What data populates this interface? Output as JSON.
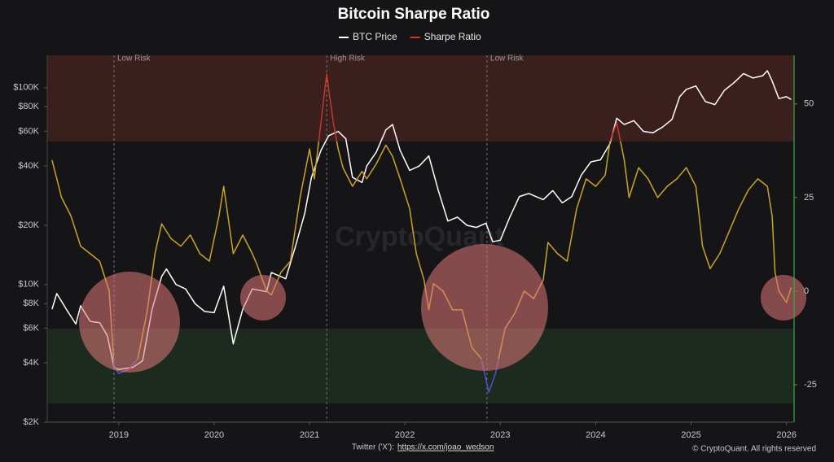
{
  "chart_data": {
    "type": "line",
    "title": "Bitcoin Sharpe Ratio",
    "watermark": "CryptoQuant",
    "source_label": "Twitter ('X'):",
    "source_link": "https://x.com/joao_wedson",
    "copyright": "© CryptoQuant. All rights reserved",
    "log_y": true,
    "grid": false,
    "legend": "top",
    "xlim": [
      2018.25,
      2026.08
    ],
    "xticks": [
      2019,
      2020,
      2021,
      2022,
      2023,
      2024,
      2025,
      2026
    ],
    "ylim": [
      2000,
      146000
    ],
    "yticks": [
      {
        "value": 2000,
        "label": "$2K"
      },
      {
        "value": 4000,
        "label": "$4K"
      },
      {
        "value": 6000,
        "label": "$6K"
      },
      {
        "value": 8000,
        "label": "$8K"
      },
      {
        "value": 10000,
        "label": "$10K"
      },
      {
        "value": 20000,
        "label": "$20K"
      },
      {
        "value": 40000,
        "label": "$40K"
      },
      {
        "value": 60000,
        "label": "$60K"
      },
      {
        "value": 80000,
        "label": "$80K"
      },
      {
        "value": 100000,
        "label": "$100K"
      }
    ],
    "y2lim": [
      -35,
      63
    ],
    "y2ticks": [
      -25,
      0,
      25,
      50
    ],
    "zones": [
      {
        "from": 40,
        "to": 63,
        "color": "#3a1f1c"
      },
      {
        "from": -30,
        "to": -10,
        "color": "#1c2a20"
      }
    ],
    "annotations": [
      {
        "x": 2018.95,
        "text": "Low Risk"
      },
      {
        "x": 2021.18,
        "text": "High Risk"
      },
      {
        "x": 2022.86,
        "text": "Low Risk"
      }
    ],
    "series": [
      {
        "name": "BTC Price",
        "color": "#ffffff",
        "x": [
          2018.3,
          2018.35,
          2018.45,
          2018.55,
          2018.6,
          2018.7,
          2018.8,
          2018.88,
          2018.95,
          2019.0,
          2019.15,
          2019.25,
          2019.35,
          2019.45,
          2019.5,
          2019.6,
          2019.7,
          2019.8,
          2019.9,
          2020.0,
          2020.1,
          2020.2,
          2020.3,
          2020.4,
          2020.55,
          2020.6,
          2020.75,
          2020.85,
          2020.95,
          2021.02,
          2021.12,
          2021.2,
          2021.3,
          2021.38,
          2021.45,
          2021.55,
          2021.6,
          2021.7,
          2021.8,
          2021.87,
          2021.95,
          2022.05,
          2022.15,
          2022.25,
          2022.35,
          2022.45,
          2022.55,
          2022.65,
          2022.75,
          2022.85,
          2022.92,
          2023.0,
          2023.1,
          2023.2,
          2023.3,
          2023.45,
          2023.55,
          2023.65,
          2023.75,
          2023.85,
          2023.95,
          2024.05,
          2024.15,
          2024.22,
          2024.3,
          2024.4,
          2024.5,
          2024.6,
          2024.7,
          2024.8,
          2024.88,
          2024.95,
          2025.05,
          2025.15,
          2025.25,
          2025.35,
          2025.45,
          2025.55,
          2025.65,
          2025.75,
          2025.8,
          2025.85,
          2025.92,
          2026.0,
          2026.05
        ],
        "values": [
          7500,
          9000,
          7500,
          6300,
          7800,
          6500,
          6400,
          5500,
          3800,
          3700,
          3800,
          4100,
          7500,
          11000,
          12000,
          10000,
          9500,
          8000,
          7300,
          7200,
          9800,
          5000,
          7500,
          9500,
          9200,
          11500,
          10700,
          15500,
          23000,
          35000,
          48000,
          57000,
          60000,
          55000,
          35000,
          33000,
          40000,
          47000,
          61000,
          65000,
          48000,
          38000,
          40000,
          45000,
          30000,
          21000,
          22000,
          20000,
          19500,
          20500,
          16500,
          16800,
          22000,
          28000,
          29000,
          27000,
          30000,
          26000,
          28000,
          36000,
          42000,
          43000,
          52000,
          70000,
          65000,
          68000,
          60000,
          59000,
          63000,
          69000,
          90000,
          98000,
          102000,
          85000,
          82000,
          97000,
          106000,
          118000,
          112000,
          115000,
          122000,
          108000,
          88000,
          90000,
          87000
        ]
      },
      {
        "name": "Sharpe Ratio",
        "color": "#d23a2a",
        "axis": "y2",
        "color_thresholds": [
          {
            "above": 40,
            "color": "#c0392b"
          },
          {
            "above": -18,
            "color": "#c9a227"
          },
          {
            "above": -35,
            "color": "#4a55c8"
          }
        ],
        "x": [
          2018.3,
          2018.4,
          2018.5,
          2018.6,
          2018.7,
          2018.8,
          2018.9,
          2018.95,
          2019.0,
          2019.1,
          2019.2,
          2019.3,
          2019.38,
          2019.45,
          2019.55,
          2019.65,
          2019.75,
          2019.85,
          2019.95,
          2020.05,
          2020.1,
          2020.2,
          2020.3,
          2020.4,
          2020.45,
          2020.55,
          2020.6,
          2020.7,
          2020.8,
          2020.9,
          2021.0,
          2021.05,
          2021.18,
          2021.25,
          2021.3,
          2021.35,
          2021.45,
          2021.55,
          2021.6,
          2021.7,
          2021.8,
          2021.87,
          2021.95,
          2022.05,
          2022.12,
          2022.2,
          2022.25,
          2022.3,
          2022.4,
          2022.5,
          2022.6,
          2022.7,
          2022.8,
          2022.88,
          2022.95,
          2023.05,
          2023.15,
          2023.25,
          2023.35,
          2023.45,
          2023.5,
          2023.6,
          2023.7,
          2023.8,
          2023.9,
          2024.0,
          2024.1,
          2024.15,
          2024.22,
          2024.3,
          2024.35,
          2024.45,
          2024.55,
          2024.65,
          2024.75,
          2024.85,
          2024.95,
          2025.05,
          2025.12,
          2025.2,
          2025.3,
          2025.4,
          2025.5,
          2025.6,
          2025.7,
          2025.8,
          2025.85,
          2025.88,
          2025.92,
          2026.0,
          2026.05
        ],
        "values": [
          35,
          25,
          20,
          12,
          10,
          8,
          0,
          -20,
          -22,
          -21,
          -18,
          -5,
          10,
          18,
          14,
          12,
          15,
          10,
          8,
          20,
          28,
          10,
          15,
          10,
          7,
          0,
          -1,
          5,
          8,
          25,
          38,
          30,
          58,
          45,
          38,
          33,
          28,
          32,
          30,
          34,
          39,
          36,
          30,
          22,
          10,
          3,
          -5,
          2,
          0,
          -5,
          -5,
          -15,
          -18,
          -27,
          -22,
          -10,
          -6,
          0,
          -2,
          3,
          13,
          10,
          8,
          22,
          30,
          28,
          31,
          40,
          45,
          35,
          25,
          33,
          30,
          25,
          28,
          30,
          33,
          28,
          12,
          6,
          10,
          16,
          22,
          27,
          30,
          28,
          20,
          5,
          0,
          -3,
          1
        ]
      }
    ]
  }
}
